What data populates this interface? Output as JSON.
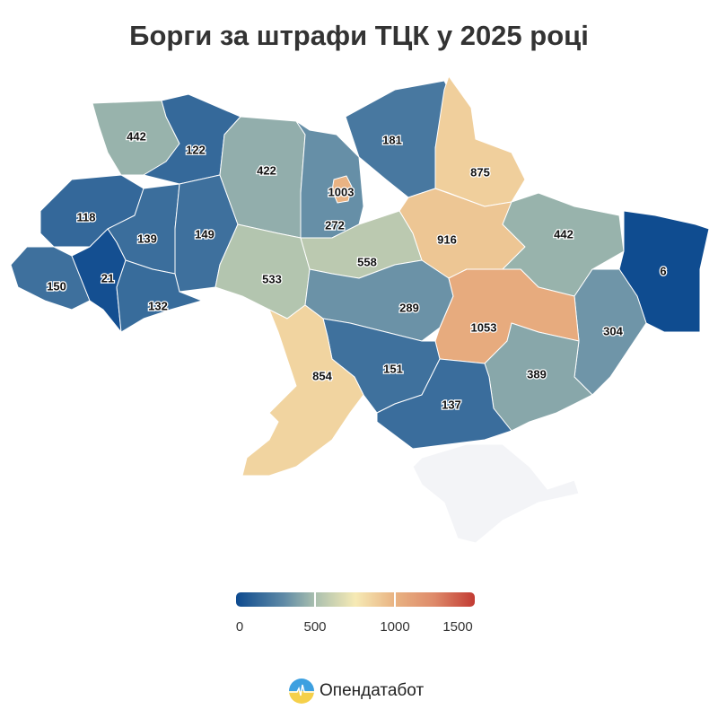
{
  "title": "Борги за штрафи ТЦК у 2025 році",
  "legend": {
    "ticks": [
      "0",
      "500",
      "1000",
      "1500"
    ],
    "range": [
      0,
      1500
    ],
    "colors": [
      "#0d4a8f",
      "#5f8aa6",
      "#a9bfae",
      "#f6eab5",
      "#e9b483",
      "#de8a6a",
      "#c23b33"
    ],
    "no_data_color": "#f3f4f7"
  },
  "regions": [
    {
      "id": "volyn",
      "value": 442
    },
    {
      "id": "rivne",
      "value": 122
    },
    {
      "id": "lviv",
      "value": 118
    },
    {
      "id": "ternopil",
      "value": 139
    },
    {
      "id": "khmelnytskyi",
      "value": 149
    },
    {
      "id": "zakarpattia",
      "value": 150
    },
    {
      "id": "ivano-frankivsk",
      "value": 21
    },
    {
      "id": "chernivtsi",
      "value": 132
    },
    {
      "id": "zhytomyr",
      "value": 422
    },
    {
      "id": "kyiv-oblast",
      "value": 272
    },
    {
      "id": "kyiv-city",
      "value": 1003
    },
    {
      "id": "chernihiv",
      "value": 181
    },
    {
      "id": "sumy",
      "value": 875
    },
    {
      "id": "poltava",
      "value": 916
    },
    {
      "id": "kharkiv",
      "value": 442
    },
    {
      "id": "luhansk",
      "value": 6
    },
    {
      "id": "donetsk",
      "value": 304
    },
    {
      "id": "vinnytsia",
      "value": 533
    },
    {
      "id": "cherkasy",
      "value": 558
    },
    {
      "id": "kirovohrad",
      "value": 289
    },
    {
      "id": "dnipropetrovsk",
      "value": 1053
    },
    {
      "id": "zaporizhzhia",
      "value": 389
    },
    {
      "id": "mykolaiv",
      "value": 151
    },
    {
      "id": "kherson",
      "value": 137
    },
    {
      "id": "odesa",
      "value": 854
    },
    {
      "id": "crimea",
      "value": null
    }
  ],
  "brand": {
    "name": "Опендатабот",
    "icon": "opendatabot-logo"
  }
}
